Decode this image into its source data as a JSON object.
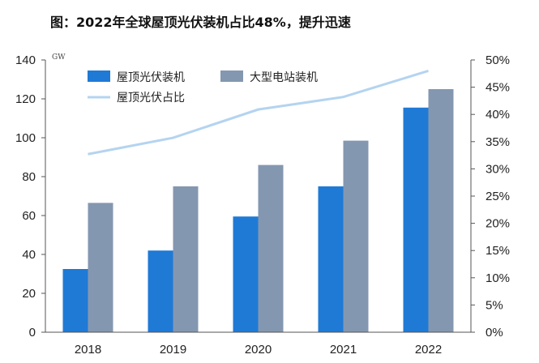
{
  "title": "图：2022年全球屋顶光伏装机占比48%，提升迅速",
  "chart_data": {
    "type": "bar",
    "categories": [
      "2018",
      "2019",
      "2020",
      "2021",
      "2022"
    ],
    "series": [
      {
        "name": "屋顶光伏装机",
        "kind": "bar",
        "axis": "left",
        "color": "#1f7ad6",
        "values": [
          32.5,
          42,
          59.5,
          75,
          115.5
        ]
      },
      {
        "name": "大型电站装机",
        "kind": "bar",
        "axis": "left",
        "color": "#8497b0",
        "values": [
          66.5,
          75,
          86,
          98.5,
          125
        ]
      },
      {
        "name": "屋顶光伏占比",
        "kind": "line",
        "axis": "right",
        "color": "#b4d4f0",
        "values": [
          32.7,
          35.7,
          40.9,
          43.2,
          48.0
        ]
      }
    ],
    "y_left": {
      "unit": "GW",
      "ylim": [
        0,
        140
      ],
      "ticks": [
        "0",
        "20",
        "40",
        "60",
        "80",
        "100",
        "120",
        "140"
      ]
    },
    "y_right": {
      "ylim": [
        0,
        50
      ],
      "ticks": [
        "0%",
        "5%",
        "10%",
        "15%",
        "20%",
        "25%",
        "30%",
        "35%",
        "40%",
        "45%",
        "50%"
      ]
    },
    "legend_position": "top-left",
    "grid": false
  }
}
